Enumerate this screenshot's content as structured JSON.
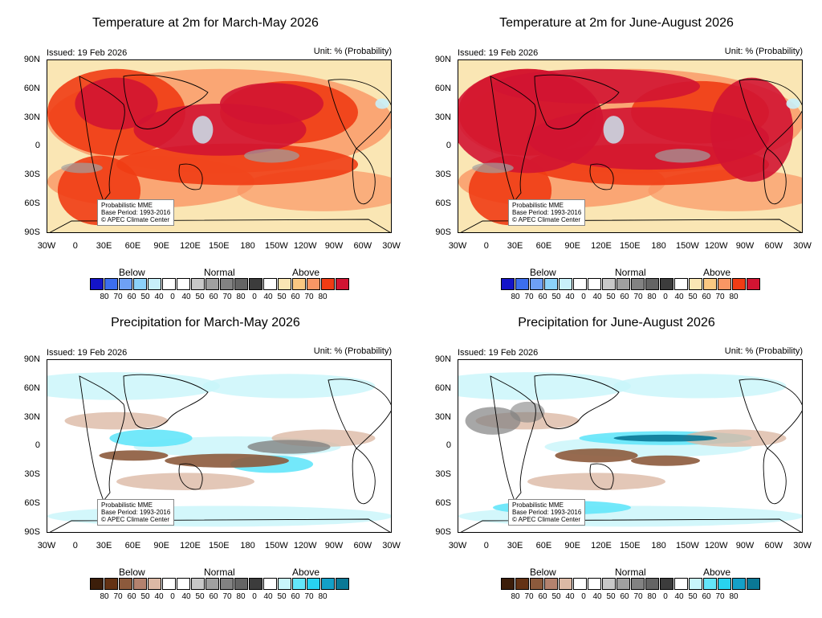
{
  "panels": [
    {
      "title": "Temperature at 2m for March-May 2026",
      "issued": "Issued: 19 Feb 2026",
      "unit": "Unit: % (Probability)",
      "variable": "temperature",
      "note": [
        "Probabilistic MME",
        "Base Period: 1993-2016",
        "© APEC Climate Center"
      ]
    },
    {
      "title": "Temperature at 2m for June-August 2026",
      "issued": "Issued: 19 Feb 2026",
      "unit": "Unit: % (Probability)",
      "variable": "temperature",
      "note": [
        "Probabilistic MME",
        "Base Period: 1993-2016",
        "© APEC Climate Center"
      ]
    },
    {
      "title": "Precipitation for March-May 2026",
      "issued": "Issued: 19 Feb 2026",
      "unit": "Unit: % (Probability)",
      "variable": "precipitation",
      "note": [
        "Probabilistic MME",
        "Base Period: 1993-2016",
        "© APEC Climate Center"
      ]
    },
    {
      "title": "Precipitation for June-August 2026",
      "issued": "Issued: 19 Feb 2026",
      "unit": "Unit: % (Probability)",
      "variable": "precipitation",
      "note": [
        "Probabilistic MME",
        "Base Period: 1993-2016",
        "© APEC Climate Center"
      ]
    }
  ],
  "axes": {
    "lat_labels": [
      "90N",
      "60N",
      "30N",
      "0",
      "30S",
      "60S",
      "90S"
    ],
    "lon_labels": [
      "30W",
      "0",
      "30E",
      "60E",
      "90E",
      "120E",
      "150E",
      "180",
      "150W",
      "120W",
      "90W",
      "60W",
      "30W"
    ]
  },
  "legend": {
    "groups": [
      "Below",
      "Normal",
      "Above"
    ],
    "ticks": [
      "80",
      "70",
      "60",
      "50",
      "40",
      "0",
      "40",
      "50",
      "60",
      "70",
      "80",
      "0",
      "40",
      "50",
      "60",
      "70",
      "80"
    ],
    "temperature_colors": {
      "below": [
        "#1414c8",
        "#3c6eee",
        "#6ea0f5",
        "#8cd2fa",
        "#c8f0fa",
        "#ffffff"
      ],
      "normal": [
        "#ffffff",
        "#c8c8c8",
        "#a0a0a0",
        "#828282",
        "#646464",
        "#3c3c3c"
      ],
      "above": [
        "#ffffff",
        "#fae6b4",
        "#fac882",
        "#fa9664",
        "#f03c14",
        "#d21432"
      ]
    },
    "precipitation_colors": {
      "below": [
        "#3c1e0a",
        "#643214",
        "#8c5a3c",
        "#b4826e",
        "#dcb9a5",
        "#ffffff"
      ],
      "normal": [
        "#ffffff",
        "#c8c8c8",
        "#a0a0a0",
        "#828282",
        "#646464",
        "#3c3c3c"
      ],
      "above": [
        "#ffffff",
        "#c8f5fa",
        "#64e6fa",
        "#28d2f0",
        "#14a0c8",
        "#0a7896"
      ]
    }
  }
}
